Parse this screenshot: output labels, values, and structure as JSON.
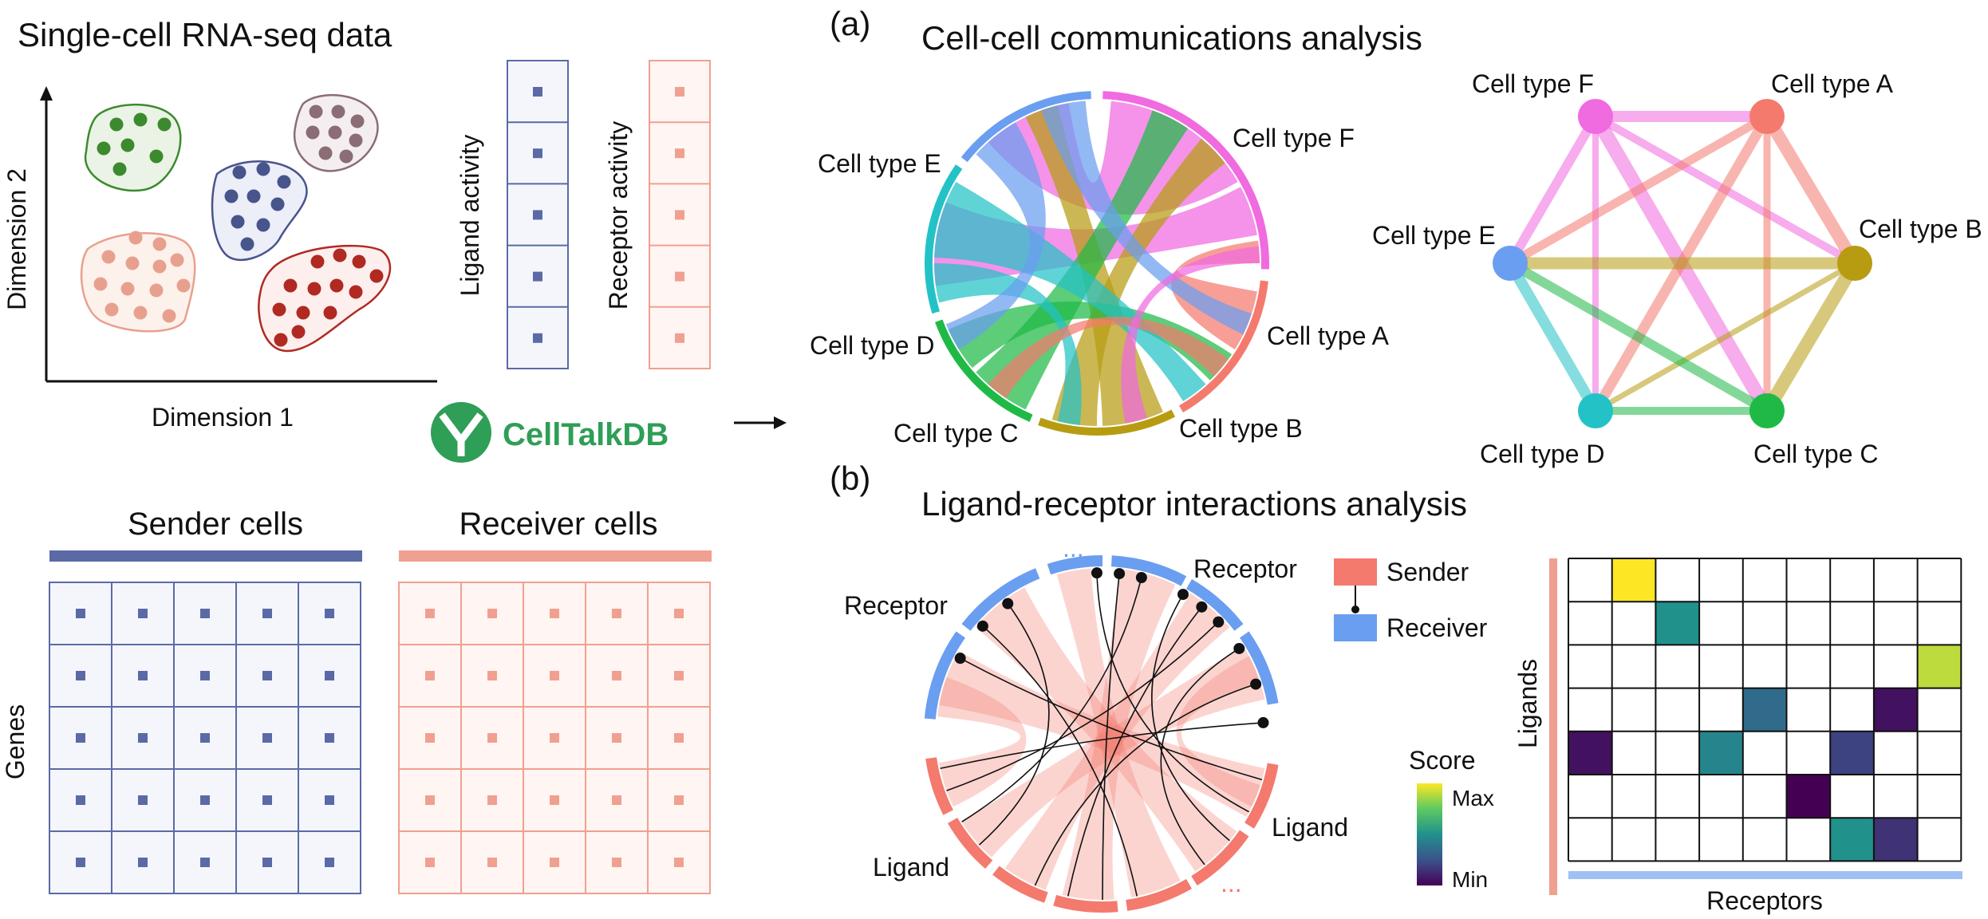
{
  "left": {
    "scrna_title": "Single-cell RNA-seq data",
    "axis_x": "Dimension 1",
    "axis_y": "Dimension 2",
    "ligand_activity": "Ligand activity",
    "receptor_activity": "Receptor activity",
    "brand": "CellTalkDB",
    "sender_cells": "Sender cells",
    "receiver_cells": "Receiver cells",
    "genes": "Genes"
  },
  "panel_a": {
    "tag": "(a)",
    "title": "Cell-cell communications analysis",
    "chord_labels": {
      "A": "Cell type A",
      "B": "Cell type B",
      "C": "Cell type C",
      "D": "Cell type D",
      "E": "Cell type E",
      "F": "Cell type F"
    },
    "network_labels": {
      "A": "Cell type A",
      "B": "Cell type B",
      "C": "Cell type C",
      "D": "Cell type D",
      "E": "Cell type E",
      "F": "Cell type F"
    }
  },
  "panel_b": {
    "tag": "(b)",
    "title": "Ligand-receptor interactions analysis",
    "receptor_left": "Receptor",
    "receptor_right": "Receptor",
    "ligand_left": "Ligand",
    "ligand_right": "Ligand",
    "dots_top": "...",
    "dots_bottom": "...",
    "legend_sender": "Sender",
    "legend_receiver": "Receiver",
    "score_title": "Score",
    "score_max": "Max",
    "score_min": "Min",
    "heatmap_ylabel": "Ligands",
    "heatmap_xlabel": "Receptors"
  },
  "colors": {
    "A": "#f47a6e",
    "B": "#b79c12",
    "C": "#1fba46",
    "D": "#23c2c6",
    "E": "#6a9ef0",
    "F": "#f06ae0",
    "sender": "#f47a6e",
    "receiver": "#6a9ef0",
    "ligand_grid": "#5b6aa6",
    "receptor_grid": "#f0a090"
  },
  "heatmap": {
    "rows": 7,
    "cols": 9,
    "cells": [
      {
        "row": 0,
        "col": 1,
        "score": 1.0
      },
      {
        "row": 1,
        "col": 2,
        "score": 0.5
      },
      {
        "row": 2,
        "col": 8,
        "score": 0.9
      },
      {
        "row": 3,
        "col": 4,
        "score": 0.35
      },
      {
        "row": 3,
        "col": 7,
        "score": 0.05
      },
      {
        "row": 4,
        "col": 0,
        "score": 0.05
      },
      {
        "row": 4,
        "col": 3,
        "score": 0.45
      },
      {
        "row": 4,
        "col": 6,
        "score": 0.2
      },
      {
        "row": 5,
        "col": 5,
        "score": 0.0
      },
      {
        "row": 6,
        "col": 6,
        "score": 0.5
      },
      {
        "row": 6,
        "col": 7,
        "score": 0.15
      }
    ]
  }
}
